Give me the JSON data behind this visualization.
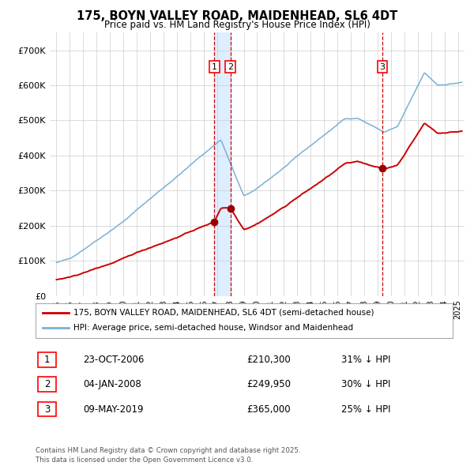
{
  "title": "175, BOYN VALLEY ROAD, MAIDENHEAD, SL6 4DT",
  "subtitle": "Price paid vs. HM Land Registry's House Price Index (HPI)",
  "legend_red": "175, BOYN VALLEY ROAD, MAIDENHEAD, SL6 4DT (semi-detached house)",
  "legend_blue": "HPI: Average price, semi-detached house, Windsor and Maidenhead",
  "transactions": [
    {
      "num": 1,
      "date": "23-OCT-2006",
      "price": "£210,300",
      "hpi_pct": "31% ↓ HPI",
      "x_year": 2006.81,
      "price_val": 210300
    },
    {
      "num": 2,
      "date": "04-JAN-2008",
      "price": "£249,950",
      "hpi_pct": "30% ↓ HPI",
      "x_year": 2008.01,
      "price_val": 249950
    },
    {
      "num": 3,
      "date": "09-MAY-2019",
      "price": "£365,000",
      "hpi_pct": "25% ↓ HPI",
      "x_year": 2019.36,
      "price_val": 365000
    }
  ],
  "footer": "Contains HM Land Registry data © Crown copyright and database right 2025.\nThis data is licensed under the Open Government Licence v3.0.",
  "ylim": [
    0,
    750000
  ],
  "xlim_start": 1994.5,
  "xlim_end": 2025.5,
  "bg_color": "#ffffff",
  "grid_color": "#cccccc",
  "red_color": "#cc0000",
  "blue_color": "#7ab0d4",
  "shade_color": "#ddeeff",
  "vline_color": "#cc0000",
  "marker_color": "#990000"
}
